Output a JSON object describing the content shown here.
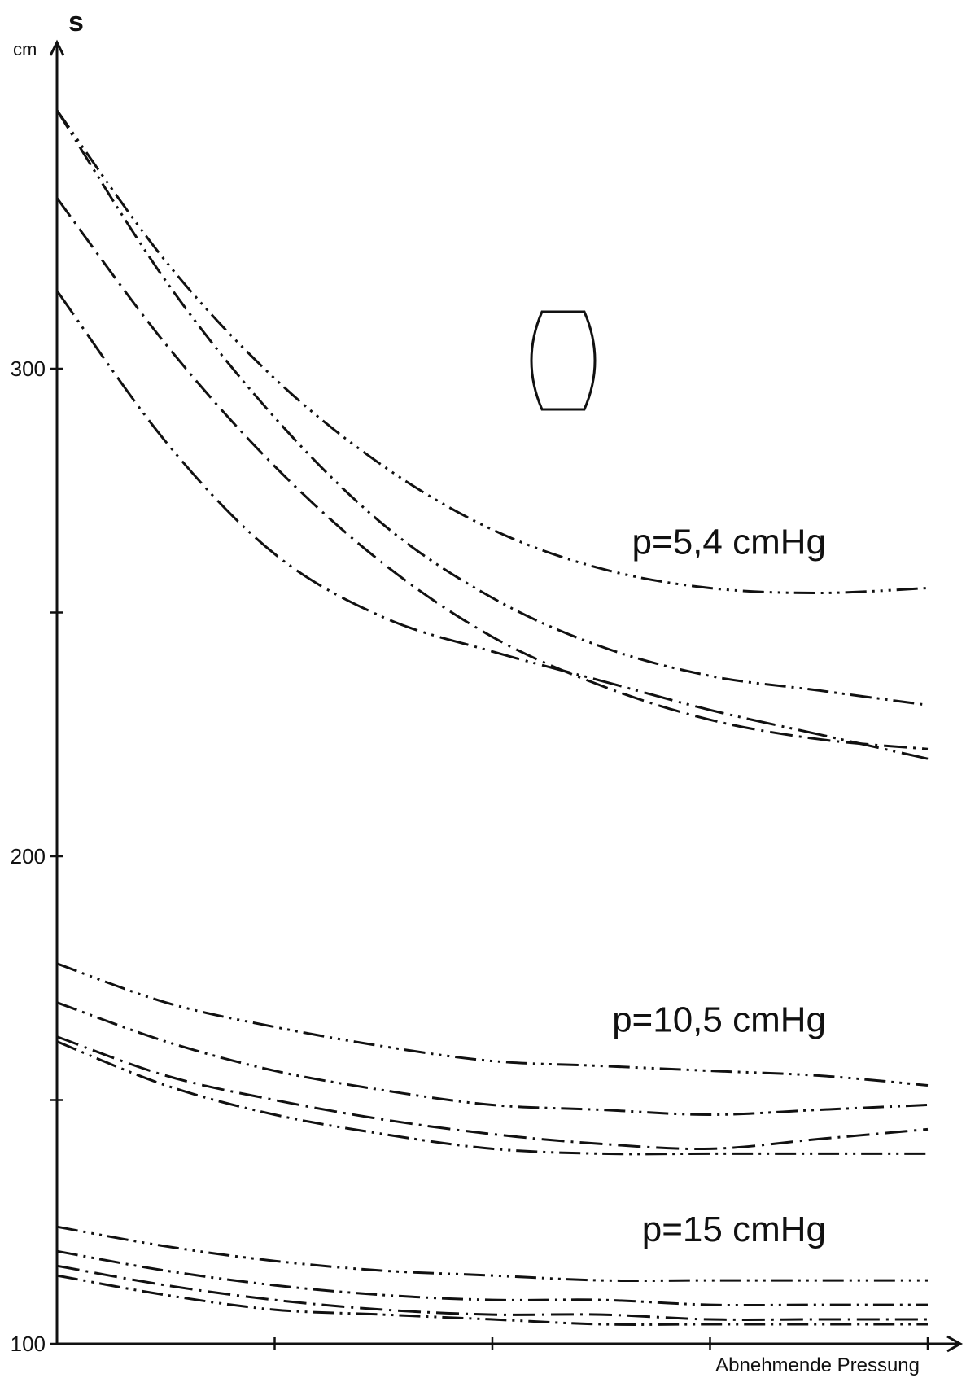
{
  "chart_data": {
    "type": "line",
    "xlabel": "Abnehmende Pressung",
    "ylabel": "s",
    "yunit": "cm",
    "ylim": [
      100,
      400
    ],
    "yticks": [
      100,
      200,
      300
    ],
    "ytick_labels": [
      "100",
      "200",
      "300"
    ],
    "xlim": [
      0,
      4.0
    ],
    "x": [
      0,
      0.5,
      1.0,
      1.5,
      2.0,
      2.5,
      3.0,
      3.5,
      4.0
    ],
    "groups": [
      {
        "label": "p=5,4 cmHg",
        "series": [
          {
            "style": "dash-dot-dot-dot",
            "values": [
              353,
              322,
              298,
              280,
              267,
              259,
              255,
              254,
              255
            ]
          },
          {
            "style": "dash-dot-dot",
            "values": [
              353,
              318,
              290,
              268,
              253,
              243,
              237,
              234,
              231
            ]
          },
          {
            "style": "dash-dot",
            "values": [
              335,
              305,
              280,
              260,
              245,
              235,
              228,
              224,
              222
            ]
          },
          {
            "style": "long-dash-dot-dot",
            "values": [
              316,
              285,
              262,
              249,
              242,
              236,
              230,
              225,
              220
            ]
          }
        ]
      },
      {
        "label": "p=10,5 cmHg",
        "series": [
          {
            "style": "dash-dot-dot-dot",
            "values": [
              178,
              170,
              165,
              161,
              158,
              157,
              156,
              155,
              153
            ]
          },
          {
            "style": "dash-dot-dot",
            "values": [
              170,
              162,
              156,
              152,
              149,
              148,
              147,
              148,
              149
            ]
          },
          {
            "style": "dash-dot",
            "values": [
              163,
              155,
              150,
              146,
              143,
              141,
              140,
              142,
              144
            ]
          },
          {
            "style": "dash-dot-dot",
            "values": [
              162,
              153,
              147,
              143,
              140,
              139,
              139,
              139,
              139
            ]
          }
        ]
      },
      {
        "label": "p=15 cmHg",
        "series": [
          {
            "style": "dash-dot-dot-dot",
            "values": [
              124,
              120,
              117,
              115,
              114,
              113,
              113,
              113,
              113
            ]
          },
          {
            "style": "dash-dot-dot",
            "values": [
              119,
              115,
              112,
              110,
              109,
              109,
              108,
              108,
              108
            ]
          },
          {
            "style": "dash-dot",
            "values": [
              116,
              112,
              109,
              107,
              106,
              106,
              105,
              105,
              105
            ]
          },
          {
            "style": "dash-dot-dot",
            "values": [
              114,
              110,
              107,
              106,
              105,
              104,
              104,
              104,
              104
            ]
          }
        ]
      }
    ]
  }
}
